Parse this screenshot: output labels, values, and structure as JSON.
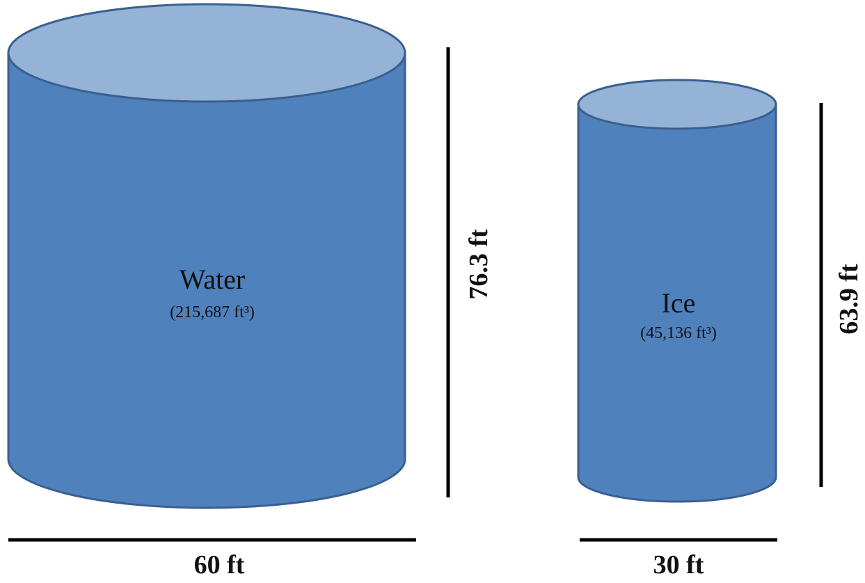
{
  "colors": {
    "body_fill": "#4f81bd",
    "top_fill": "#95b3d7",
    "outline": "#3a5f8f",
    "dimension_line": "#000000"
  },
  "water": {
    "name": "Water",
    "volume_label": "(215,687 ft³)",
    "height_label": "76.3 ft",
    "width_label": "60 ft"
  },
  "ice": {
    "name": "Ice",
    "volume_label": "(45,136 ft³)",
    "height_label": "63.9 ft",
    "width_label": "30 ft"
  }
}
